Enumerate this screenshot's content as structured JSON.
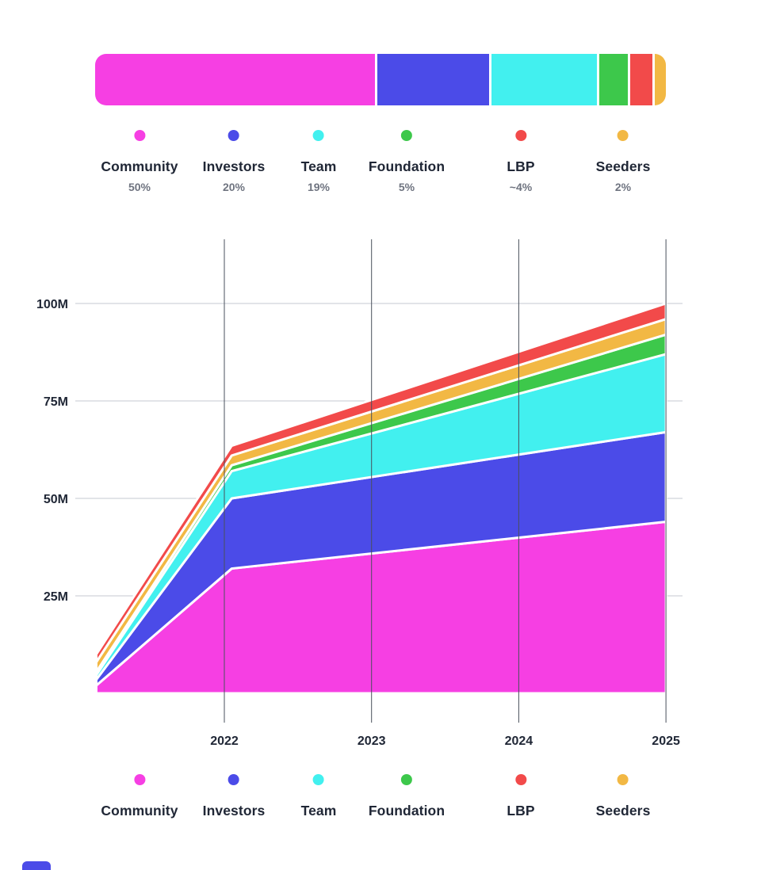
{
  "colors": {
    "community": "#F63FE3",
    "investors": "#4B4BE8",
    "team": "#42F0EF",
    "foundation": "#3DC84B",
    "lbp": "#F24A4A",
    "seeders": "#F2B844",
    "text_dark": "#202736",
    "text_muted": "#6F7480"
  },
  "allocation_bar": {
    "segments": [
      {
        "name": "Community",
        "percent": 50,
        "color": "#F63FE3"
      },
      {
        "name": "Investors",
        "percent": 20,
        "color": "#4B4BE8"
      },
      {
        "name": "Team",
        "percent": 19,
        "color": "#42F0EF"
      },
      {
        "name": "Foundation",
        "percent": 5,
        "color": "#3DC84B"
      },
      {
        "name": "LBP",
        "percent": 4,
        "color": "#F24A4A"
      },
      {
        "name": "Seeders",
        "percent": 2,
        "color": "#F2B844"
      }
    ]
  },
  "legend_top": {
    "items": [
      {
        "label": "Community",
        "percent": "50%",
        "color": "#F63FE3"
      },
      {
        "label": "Investors",
        "percent": "20%",
        "color": "#4B4BE8"
      },
      {
        "label": "Team",
        "percent": "19%",
        "color": "#42F0EF"
      },
      {
        "label": "Foundation",
        "percent": "5%",
        "color": "#3DC84B"
      },
      {
        "label": "LBP",
        "percent": "~4%",
        "color": "#F24A4A"
      },
      {
        "label": "Seeders",
        "percent": "2%",
        "color": "#F2B844"
      }
    ]
  },
  "legend_bottom": {
    "items": [
      {
        "label": "Community",
        "color": "#F63FE3"
      },
      {
        "label": "Investors",
        "color": "#4B4BE8"
      },
      {
        "label": "Team",
        "color": "#42F0EF"
      },
      {
        "label": "Foundation",
        "color": "#3DC84B"
      },
      {
        "label": "LBP",
        "color": "#F24A4A"
      },
      {
        "label": "Seeders",
        "color": "#F2B844"
      }
    ]
  },
  "chart_data": {
    "type": "area",
    "stacked": true,
    "title": "",
    "xlabel": "",
    "ylabel": "",
    "unit": "M tokens",
    "x": [
      2021.13,
      2022.05,
      2025
    ],
    "x_ticks": [
      2022,
      2023,
      2024,
      2025
    ],
    "y_ticks": [
      "25M",
      "50M",
      "75M",
      "100M"
    ],
    "y_tick_values": [
      25,
      50,
      75,
      100
    ],
    "ylim": [
      0,
      105
    ],
    "grid": true,
    "series": [
      {
        "name": "Community",
        "color": "#F63FE3",
        "values": [
          2.0,
          32.0,
          44.0
        ]
      },
      {
        "name": "Investors",
        "color": "#4B4BE8",
        "values": [
          1.5,
          18.0,
          23.0
        ]
      },
      {
        "name": "Team",
        "color": "#42F0EF",
        "values": [
          1.2,
          7.0,
          20.0
        ]
      },
      {
        "name": "Foundation",
        "color": "#3DC84B",
        "values": [
          0.8,
          1.5,
          5.0
        ]
      },
      {
        "name": "Seeders",
        "color": "#F2B844",
        "values": [
          2.5,
          2.5,
          4.0
        ]
      },
      {
        "name": "LBP",
        "color": "#F24A4A",
        "values": [
          2.0,
          2.5,
          4.0
        ]
      }
    ]
  }
}
